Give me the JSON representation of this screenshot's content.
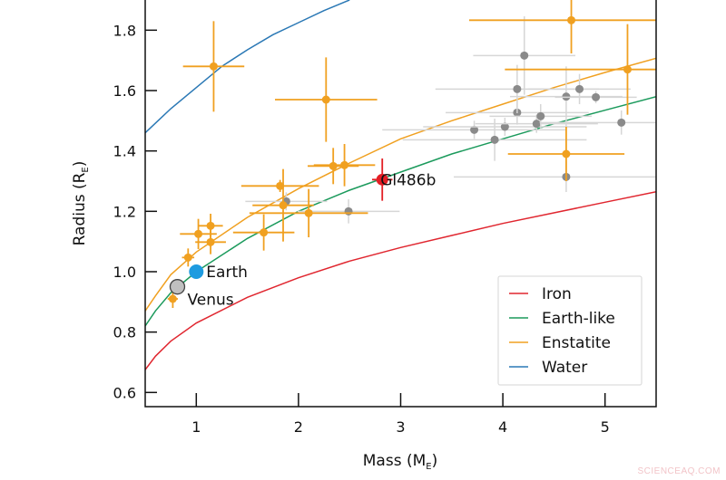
{
  "chart_data": {
    "type": "scatter",
    "title": "",
    "xlabel": "Mass (M",
    "xlabel_sub": "E",
    "xlabel_close": ")",
    "ylabel": "Radius (R",
    "ylabel_sub": "E",
    "ylabel_close": ")",
    "xlim": [
      0.5,
      5.5
    ],
    "ylim": [
      0.553,
      1.9
    ],
    "xticks": [
      1,
      2,
      3,
      4,
      5
    ],
    "yticks": [
      0.6,
      0.8,
      1.0,
      1.2,
      1.4,
      1.6,
      1.8
    ],
    "ytick_labels": [
      "0.6",
      "0.8",
      "1.0",
      "1.2",
      "1.4",
      "1.6",
      "1.8"
    ],
    "grid": false,
    "legend": {
      "placement": "bottom-right",
      "entries": [
        "Iron",
        "Earth-like",
        "Enstatite",
        "Water"
      ]
    },
    "models": [
      {
        "name": "Iron",
        "color": "#e0262f",
        "x": [
          0.5,
          0.6,
          0.75,
          1,
          1.5,
          2,
          2.5,
          3,
          3.5,
          4,
          4.5,
          5,
          5.5
        ],
        "y": [
          0.675,
          0.72,
          0.77,
          0.83,
          0.915,
          0.98,
          1.035,
          1.08,
          1.12,
          1.16,
          1.195,
          1.23,
          1.265
        ]
      },
      {
        "name": "Earth-like",
        "color": "#1b9a5c",
        "x": [
          0.5,
          0.6,
          0.75,
          1,
          1.5,
          2,
          2.5,
          3,
          3.5,
          4,
          4.5,
          5,
          5.5
        ],
        "y": [
          0.82,
          0.87,
          0.93,
          1.0,
          1.11,
          1.2,
          1.27,
          1.33,
          1.39,
          1.44,
          1.49,
          1.535,
          1.58
        ]
      },
      {
        "name": "Enstatite",
        "color": "#f0a020",
        "x": [
          0.5,
          0.6,
          0.75,
          1,
          1.5,
          2,
          2.5,
          3,
          3.5,
          4,
          4.5,
          5,
          5.5
        ],
        "y": [
          0.87,
          0.92,
          0.99,
          1.065,
          1.18,
          1.275,
          1.36,
          1.44,
          1.5,
          1.555,
          1.61,
          1.66,
          1.707
        ]
      },
      {
        "name": "Water",
        "color": "#2a78b5",
        "x": [
          0.5,
          0.75,
          1,
          1.25,
          1.5,
          1.75,
          2,
          2.25,
          2.5
        ],
        "y": [
          1.46,
          1.54,
          1.61,
          1.68,
          1.735,
          1.785,
          1.825,
          1.865,
          1.9
        ]
      }
    ],
    "planets_enstatite_color": {
      "color": "#f0a020",
      "points": [
        {
          "x": 0.77,
          "y": 0.91,
          "xerr": 0.05,
          "yerr": 0.03
        },
        {
          "x": 0.92,
          "y": 1.047,
          "xerr": 0.06,
          "yerr": 0.03
        },
        {
          "x": 1.02,
          "y": 1.125,
          "xerr": 0.18,
          "yerr": 0.05
        },
        {
          "x": 1.14,
          "y": 1.152,
          "xerr": 0.12,
          "yerr": 0.04
        },
        {
          "x": 1.14,
          "y": 1.098,
          "xerr": 0.15,
          "yerr": 0.04
        },
        {
          "x": 1.17,
          "y": 1.68,
          "xerr": 0.3,
          "yerr": 0.15
        },
        {
          "x": 1.66,
          "y": 1.13,
          "xerr": 0.3,
          "yerr": 0.06
        },
        {
          "x": 1.82,
          "y": 1.284,
          "xerr": 0.38,
          "yerr": 0.02
        },
        {
          "x": 1.85,
          "y": 1.22,
          "xerr": 0.3,
          "yerr": 0.12
        },
        {
          "x": 2.1,
          "y": 1.194,
          "xerr": 0.58,
          "yerr": 0.08
        },
        {
          "x": 2.27,
          "y": 1.57,
          "xerr": 0.5,
          "yerr": 0.14
        },
        {
          "x": 2.34,
          "y": 1.35,
          "xerr": 0.25,
          "yerr": 0.06
        },
        {
          "x": 2.45,
          "y": 1.353,
          "xerr": 0.3,
          "yerr": 0.07
        },
        {
          "x": 4.62,
          "y": 1.39,
          "xerr": 0.57,
          "yerr": 0.09
        },
        {
          "x": 4.67,
          "y": 1.833,
          "xerr": 1.0,
          "yerr": 0.11
        },
        {
          "x": 5.22,
          "y": 1.67,
          "xerr": 1.2,
          "yerr": 0.15
        }
      ]
    },
    "planets_gray": {
      "color": "#8a8a8a",
      "points": [
        {
          "x": 1.88,
          "y": 1.233,
          "xerr": 0.4,
          "yerr": 0.03
        },
        {
          "x": 2.49,
          "y": 1.2,
          "xerr": 0.5,
          "yerr": 0.04
        },
        {
          "x": 3.72,
          "y": 1.47,
          "xerr": 0.9,
          "yerr": 0.03
        },
        {
          "x": 3.92,
          "y": 1.437,
          "xerr": 0.9,
          "yerr": 0.07
        },
        {
          "x": 4.02,
          "y": 1.48,
          "xerr": 0.8,
          "yerr": 0.03
        },
        {
          "x": 4.14,
          "y": 1.527,
          "xerr": 0.7,
          "yerr": 0.04
        },
        {
          "x": 4.14,
          "y": 1.605,
          "xerr": 0.8,
          "yerr": 0.08
        },
        {
          "x": 4.21,
          "y": 1.716,
          "xerr": 0.5,
          "yerr": 0.13
        },
        {
          "x": 4.33,
          "y": 1.49,
          "xerr": 0.6,
          "yerr": 0.03
        },
        {
          "x": 4.37,
          "y": 1.515,
          "xerr": 0.5,
          "yerr": 0.04
        },
        {
          "x": 4.62,
          "y": 1.58,
          "xerr": 0.55,
          "yerr": 0.1
        },
        {
          "x": 4.62,
          "y": 1.314,
          "xerr": 1.1,
          "yerr": 0.05
        },
        {
          "x": 4.75,
          "y": 1.605,
          "xerr": 0.5,
          "yerr": 0.05
        },
        {
          "x": 4.91,
          "y": 1.578,
          "xerr": 0.4,
          "yerr": 0.02
        },
        {
          "x": 5.16,
          "y": 1.494,
          "xerr": 0.8,
          "yerr": 0.04
        }
      ]
    },
    "labeled_points": [
      {
        "label": "Gl486b",
        "x": 2.82,
        "y": 1.305,
        "xerr": 0.1,
        "yerr": 0.07,
        "color": "#e31e24"
      },
      {
        "label": "Earth",
        "x": 1.0,
        "y": 1.0,
        "xerr": 0,
        "yerr": 0,
        "color": "#1e9be0"
      },
      {
        "label": "Venus",
        "x": 0.815,
        "y": 0.95,
        "xerr": 0,
        "yerr": 0,
        "color": "#c0c0c0"
      }
    ]
  },
  "watermark": "SCIENCEAQ.COM"
}
